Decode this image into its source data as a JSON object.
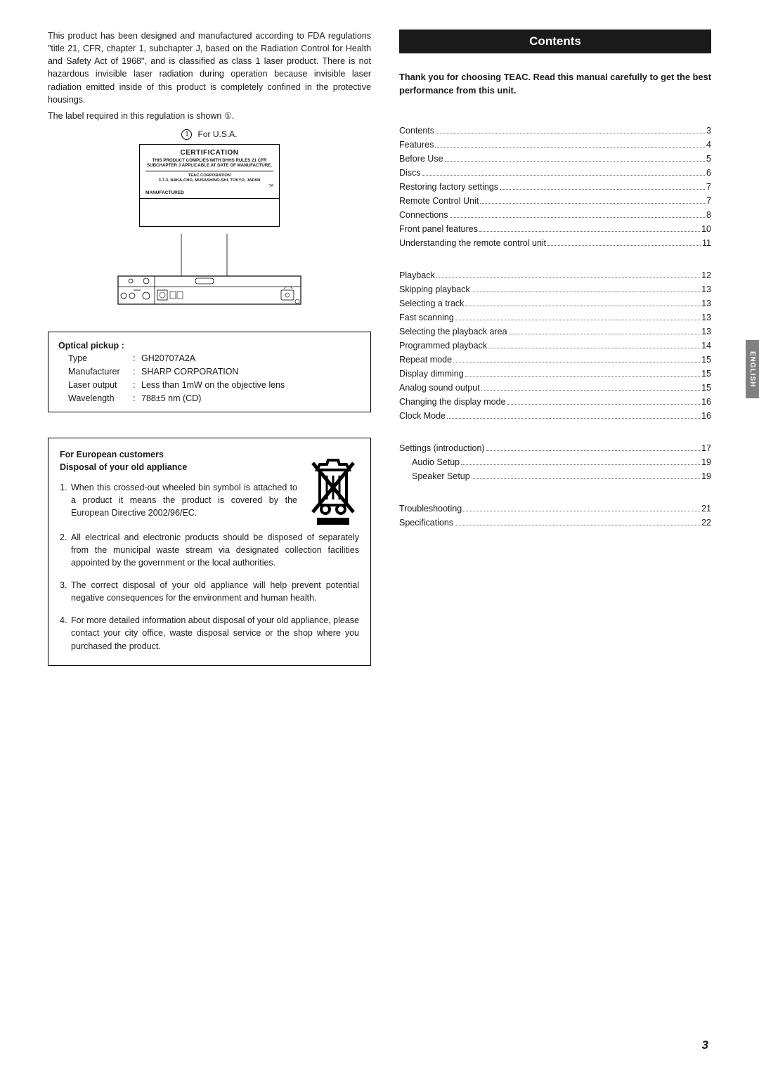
{
  "colors": {
    "text": "#1a1a1a",
    "background": "#ffffff",
    "header_bg": "#1a1a1a",
    "header_fg": "#ffffff",
    "sidetab_bg": "#808080",
    "dots": "#666666",
    "border": "#000000"
  },
  "fda": {
    "paragraph": "This product has been designed and manufactured according to FDA regulations \"title 21, CFR, chapter 1, subchapter J, based on the Radiation Control for Health and Safety Act of 1968\", and is classified as class 1 laser product. There is not hazardous invisible laser radiation during operation because invisible laser radiation emitted inside of this product is completely confined in the protective housings.",
    "label_line": "The label required in this regulation is shown ①.",
    "cert_num": "1",
    "cert_caption": "For U.S.A.",
    "cert_title": "CERTIFICATION",
    "cert_body": "THIS PRODUCT COMPLIES WITH DHHS RULES 21 CFR SUBCHAPTER J APPLICABLE AT DATE OF MANUFACTURE.",
    "cert_corp": "TEAC CORPORATION",
    "cert_addr": "3-7-3, NAKA-CHO, MUSASHINO-SHI, TOKYO, JAPAN",
    "cert_ta": "TA",
    "cert_mfd": "MANUFACTURED"
  },
  "optical": {
    "title": "Optical pickup :",
    "rows": [
      {
        "key": "Type",
        "val": "GH20707A2A"
      },
      {
        "key": "Manufacturer",
        "val": "SHARP CORPORATION"
      },
      {
        "key": "Laser output",
        "val": "Less than 1mW on the objective lens"
      },
      {
        "key": "Wavelength",
        "val": "788±5 nm (CD)"
      }
    ]
  },
  "euro": {
    "heading": "For European customers",
    "sub": "Disposal of your old appliance",
    "items": [
      "When this crossed-out wheeled bin symbol is attached to a product it means the product is covered by the European Directive 2002/96/EC.",
      "All electrical and electronic products should be disposed of separately from the municipal waste stream via designated collection facilities appointed by the government or the local authorities.",
      "The correct disposal of your old appliance will help prevent potential negative consequences for the environment and human health.",
      "For more detailed information about disposal of your old appliance, please contact your city office, waste disposal service or the shop where you purchased the product."
    ]
  },
  "contents": {
    "title": "Contents",
    "thankyou": "Thank you for choosing TEAC. Read this manual carefully to get the best performance from this unit.",
    "groups": [
      [
        {
          "label": "Contents",
          "page": "3",
          "indent": false
        },
        {
          "label": "Features",
          "page": "4",
          "indent": false
        },
        {
          "label": "Before Use",
          "page": "5",
          "indent": false
        },
        {
          "label": "Discs",
          "page": "6",
          "indent": false
        },
        {
          "label": "Restoring factory settings",
          "page": "7",
          "indent": false
        },
        {
          "label": "Remote Control Unit",
          "page": "7",
          "indent": false
        },
        {
          "label": "Connections",
          "page": "8",
          "indent": false
        },
        {
          "label": "Front panel features",
          "page": "10",
          "indent": false
        },
        {
          "label": "Understanding the remote control unit",
          "page": "11",
          "indent": false
        }
      ],
      [
        {
          "label": "Playback",
          "page": "12",
          "indent": false
        },
        {
          "label": "Skipping playback",
          "page": "13",
          "indent": false
        },
        {
          "label": "Selecting a track",
          "page": "13",
          "indent": false
        },
        {
          "label": "Fast scanning",
          "page": "13",
          "indent": false
        },
        {
          "label": "Selecting the playback area",
          "page": "13",
          "indent": false
        },
        {
          "label": "Programmed playback",
          "page": "14",
          "indent": false
        },
        {
          "label": "Repeat mode",
          "page": "15",
          "indent": false
        },
        {
          "label": "Display dimming",
          "page": "15",
          "indent": false
        },
        {
          "label": "Analog sound output",
          "page": "15",
          "indent": false
        },
        {
          "label": "Changing the display mode",
          "page": "16",
          "indent": false
        },
        {
          "label": "Clock Mode",
          "page": "16",
          "indent": false
        }
      ],
      [
        {
          "label": "Settings (introduction)",
          "page": "17",
          "indent": false
        },
        {
          "label": "Audio Setup",
          "page": "19",
          "indent": true
        },
        {
          "label": "Speaker Setup",
          "page": "19",
          "indent": true
        }
      ],
      [
        {
          "label": "Troubleshooting",
          "page": "21",
          "indent": false
        },
        {
          "label": "Specifications",
          "page": "22",
          "indent": false
        }
      ]
    ]
  },
  "sidetab": "ENGLISH",
  "page_number": "3"
}
